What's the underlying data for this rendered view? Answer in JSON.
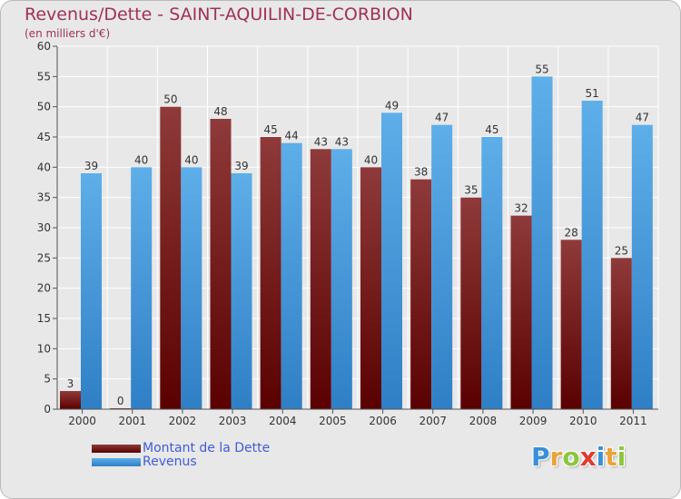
{
  "title": "Revenus/Dette - SAINT-AQUILIN-DE-CORBION",
  "subtitle": "(en milliers d'€)",
  "colors": {
    "title": "#a0305a",
    "debt_light": "#8f3a3a",
    "debt_dark": "#5a0000",
    "revenue_light": "#5eaee9",
    "revenue_dark": "#2f7fc6",
    "legend_text": "#3f5cd6"
  },
  "chart_data": {
    "type": "bar",
    "title": "Revenus/Dette - SAINT-AQUILIN-DE-CORBION",
    "subtitle": "(en milliers d'€)",
    "categories": [
      "2000",
      "2001",
      "2002",
      "2003",
      "2004",
      "2005",
      "2006",
      "2007",
      "2008",
      "2009",
      "2010",
      "2011"
    ],
    "series": [
      {
        "name": "Montant de la Dette",
        "values": [
          3,
          0,
          50,
          48,
          45,
          43,
          40,
          38,
          35,
          32,
          28,
          25
        ]
      },
      {
        "name": "Revenus",
        "values": [
          39,
          40,
          40,
          39,
          44,
          43,
          49,
          47,
          45,
          55,
          51,
          47
        ]
      }
    ],
    "ylim": [
      0,
      60
    ],
    "yticks": [
      0,
      5,
      10,
      15,
      20,
      25,
      30,
      35,
      40,
      45,
      50,
      55,
      60
    ],
    "grid": true,
    "legend_position": "bottom-left"
  },
  "legend": [
    {
      "label": "Montant de la Dette"
    },
    {
      "label": "Revenus"
    }
  ],
  "brand": {
    "letters": [
      {
        "ch": "P",
        "color": "#3a8fd6"
      },
      {
        "ch": "r",
        "color": "#e8a33a"
      },
      {
        "ch": "o",
        "color": "#8cc63f"
      },
      {
        "ch": "x",
        "color": "#e23a2e"
      },
      {
        "ch": "i",
        "color": "#3a8fd6"
      },
      {
        "ch": "t",
        "color": "#e8a33a"
      },
      {
        "ch": "i",
        "color": "#8cc63f"
      }
    ]
  }
}
